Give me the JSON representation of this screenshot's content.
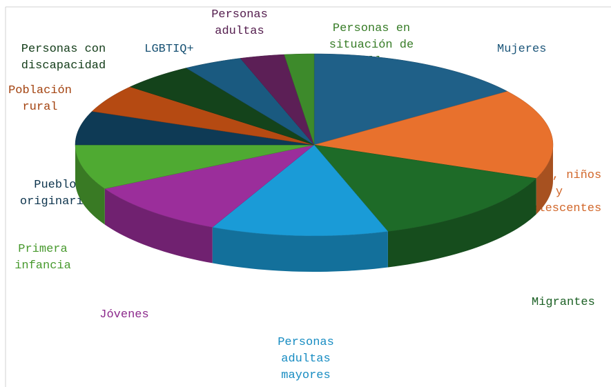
{
  "chart_data": {
    "type": "pie3d",
    "categories": [
      "Mujeres",
      "Niñas, niños y adolescentes",
      "Migrantes",
      "Personas adultas mayores",
      "Jóvenes",
      "Primera infancia",
      "Pueblos originarios",
      "Población rural",
      "Personas con discapacidad",
      "LGBTIQ+",
      "Personas adultas",
      "Personas en situación de calle"
    ],
    "values": [
      15,
      16,
      14,
      12,
      10,
      8,
      6,
      5,
      5,
      4,
      3,
      2
    ],
    "colors": [
      "#1f6088",
      "#e8712d",
      "#1e6b28",
      "#1a9bd7",
      "#9b2e9b",
      "#4faa32",
      "#0e3a55",
      "#b54a12",
      "#14431b",
      "#1a5a80",
      "#5c1f56",
      "#3d8a2b"
    ]
  }
}
